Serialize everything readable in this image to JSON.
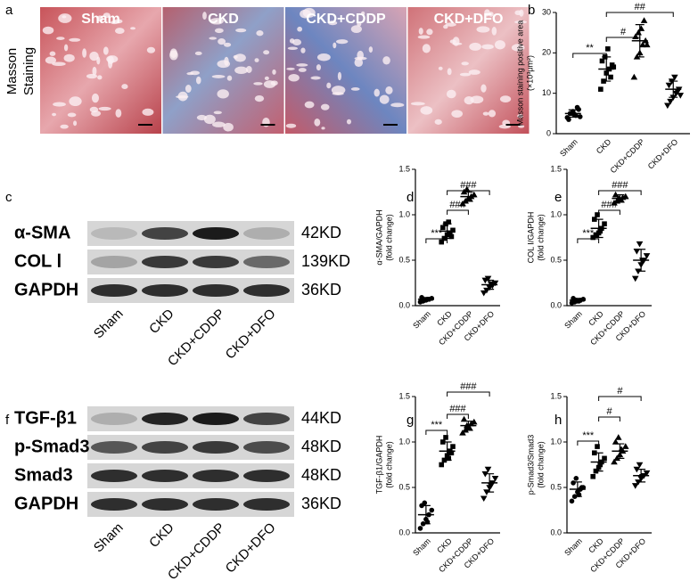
{
  "panel_letters": [
    "a",
    "b",
    "c",
    "d",
    "e",
    "f",
    "g",
    "h"
  ],
  "micrographs": {
    "stain_label": [
      "Masson",
      "Staining"
    ],
    "labels": [
      "Sham",
      "CKD",
      "CKD+CDDP",
      "CKD+DFO"
    ]
  },
  "blots": [
    {
      "proteins": [
        "α-SMA",
        "COL Ⅰ",
        "GAPDH"
      ],
      "sizes": [
        "42KD",
        "139KD",
        "36KD"
      ],
      "lanes": [
        "Sham",
        "CKD",
        "CKD+CDDP",
        "CKD+DFO"
      ]
    },
    {
      "proteins": [
        "TGF-β1",
        "p-Smad3",
        "Smad3",
        "GAPDH"
      ],
      "sizes": [
        "44KD",
        "48KD",
        "48KD",
        "36KD"
      ],
      "lanes": [
        "Sham",
        "CKD",
        "CKD+CDDP",
        "CKD+DFO"
      ]
    }
  ],
  "chart_data": [
    {
      "type": "dot",
      "ylabel": [
        "Masson staining positive area",
        "(×10³μm²)"
      ],
      "categories": [
        "Sham",
        "CKD",
        "CKD+CDDP",
        "CKD+DFO"
      ],
      "color": "#000000",
      "groups": [
        {
          "values": [
            4,
            5,
            5.5,
            4.5,
            6,
            3.5,
            5,
            4.8,
            6.5,
            4.2
          ]
        },
        {
          "values": [
            11,
            13,
            15,
            16,
            17,
            18,
            19,
            21,
            14,
            16.5
          ]
        },
        {
          "values": [
            14,
            19,
            20,
            22,
            23,
            24,
            25,
            26,
            28,
            22
          ]
        },
        {
          "values": [
            7,
            8,
            9,
            10,
            11,
            12,
            13,
            14,
            10.5,
            9.5
          ]
        }
      ],
      "means": [
        5,
        16,
        23,
        11
      ],
      "sds": [
        0.9,
        3,
        4,
        2
      ],
      "ylim": [
        0,
        30
      ],
      "yticks": [
        0,
        10,
        20,
        30
      ],
      "significance": [
        "**",
        "#",
        "##"
      ]
    },
    {
      "type": "dot",
      "ylabel": [
        "α-SMA/GAPDH",
        "(fold change)"
      ],
      "categories": [
        "Sham",
        "CKD",
        "CKD+CDDP",
        "CKD+DFO"
      ],
      "color": "#000000",
      "groups": [
        {
          "values": [
            0.04,
            0.05,
            0.06,
            0.07,
            0.08,
            0.09,
            0.06,
            0.07
          ]
        },
        {
          "values": [
            0.7,
            0.74,
            0.78,
            0.8,
            0.83,
            0.86,
            0.9,
            0.92,
            0.76
          ]
        },
        {
          "values": [
            1.12,
            1.15,
            1.18,
            1.2,
            1.22,
            1.25,
            1.28,
            1.17
          ]
        },
        {
          "values": [
            0.14,
            0.17,
            0.2,
            0.22,
            0.25,
            0.28,
            0.3,
            0.24
          ]
        }
      ],
      "means": [
        0.07,
        0.82,
        1.2,
        0.23
      ],
      "sds": [
        0.02,
        0.08,
        0.05,
        0.05
      ],
      "ylim": [
        0,
        1.5
      ],
      "yticks": [
        {
          "value": 0,
          "label": "0.0"
        },
        0.5,
        {
          "value": 1,
          "label": "1.0"
        },
        1.5
      ],
      "significance": [
        "***",
        "###",
        "###"
      ]
    },
    {
      "type": "dot",
      "ylabel": [
        "COL Ⅰ/GAPDH",
        "(fold change)"
      ],
      "categories": [
        "Sham",
        "CKD",
        "CKD+CDDP",
        "CKD+DFO"
      ],
      "color": "#000000",
      "groups": [
        {
          "values": [
            0.03,
            0.04,
            0.05,
            0.06,
            0.07,
            0.08,
            0.06,
            0.05
          ]
        },
        {
          "values": [
            0.75,
            0.78,
            0.8,
            0.85,
            0.9,
            0.95,
            1.0,
            0.82
          ]
        },
        {
          "values": [
            1.13,
            1.15,
            1.17,
            1.19,
            1.2,
            1.22,
            1.18,
            1.16
          ]
        },
        {
          "values": [
            0.3,
            0.38,
            0.45,
            0.5,
            0.55,
            0.6,
            0.68,
            0.5
          ]
        }
      ],
      "means": [
        0.06,
        0.85,
        1.18,
        0.5
      ],
      "sds": [
        0.02,
        0.1,
        0.04,
        0.12
      ],
      "ylim": [
        0,
        1.5
      ],
      "yticks": [
        {
          "value": 0,
          "label": "0.0"
        },
        0.5,
        {
          "value": 1,
          "label": "1.0"
        },
        1.5
      ],
      "significance": [
        "***",
        "###",
        "###"
      ]
    },
    {
      "type": "dot",
      "ylabel": [
        "TGF-β1/GAPDH",
        "(fold change)"
      ],
      "categories": [
        "Sham",
        "CKD",
        "CKD+CDDP",
        "CKD+DFO"
      ],
      "color": "#000000",
      "groups": [
        {
          "values": [
            0.05,
            0.1,
            0.15,
            0.2,
            0.25,
            0.3,
            0.33,
            0.12
          ]
        },
        {
          "values": [
            0.75,
            0.8,
            0.85,
            0.9,
            0.95,
            1.0,
            1.05,
            0.82,
            0.88
          ]
        },
        {
          "values": [
            1.1,
            1.13,
            1.16,
            1.2,
            1.22,
            1.25,
            1.18,
            1.15
          ]
        },
        {
          "values": [
            0.38,
            0.45,
            0.5,
            0.55,
            0.6,
            0.65,
            0.7,
            0.52
          ]
        }
      ],
      "means": [
        0.2,
        0.9,
        1.18,
        0.55
      ],
      "sds": [
        0.1,
        0.1,
        0.05,
        0.1
      ],
      "ylim": [
        0,
        1.5
      ],
      "yticks": [
        {
          "value": 0,
          "label": "0.0"
        },
        0.5,
        {
          "value": 1,
          "label": "1.0"
        },
        1.5
      ],
      "significance": [
        "***",
        "###",
        "###"
      ]
    },
    {
      "type": "dot",
      "ylabel": [
        "p-Smad3/Smad3",
        "(fold change)"
      ],
      "categories": [
        "Sham",
        "CKD",
        "CKD+CDDP",
        "CKD+DFO"
      ],
      "color": "#000000",
      "groups": [
        {
          "values": [
            0.35,
            0.4,
            0.45,
            0.48,
            0.5,
            0.55,
            0.6,
            0.42,
            0.5
          ]
        },
        {
          "values": [
            0.62,
            0.68,
            0.72,
            0.78,
            0.82,
            0.88,
            0.95,
            0.75
          ]
        },
        {
          "values": [
            0.78,
            0.82,
            0.86,
            0.9,
            0.95,
            1.0,
            1.05,
            0.92
          ]
        },
        {
          "values": [
            0.52,
            0.56,
            0.6,
            0.63,
            0.66,
            0.7,
            0.75,
            0.62
          ]
        }
      ],
      "means": [
        0.48,
        0.78,
        0.9,
        0.63
      ],
      "sds": [
        0.08,
        0.1,
        0.08,
        0.07
      ],
      "ylim": [
        0,
        1.5
      ],
      "yticks": [
        {
          "value": 0,
          "label": "0.0"
        },
        0.5,
        {
          "value": 1,
          "label": "1.0"
        },
        1.5
      ],
      "significance": [
        "***",
        "#",
        "#"
      ]
    }
  ]
}
